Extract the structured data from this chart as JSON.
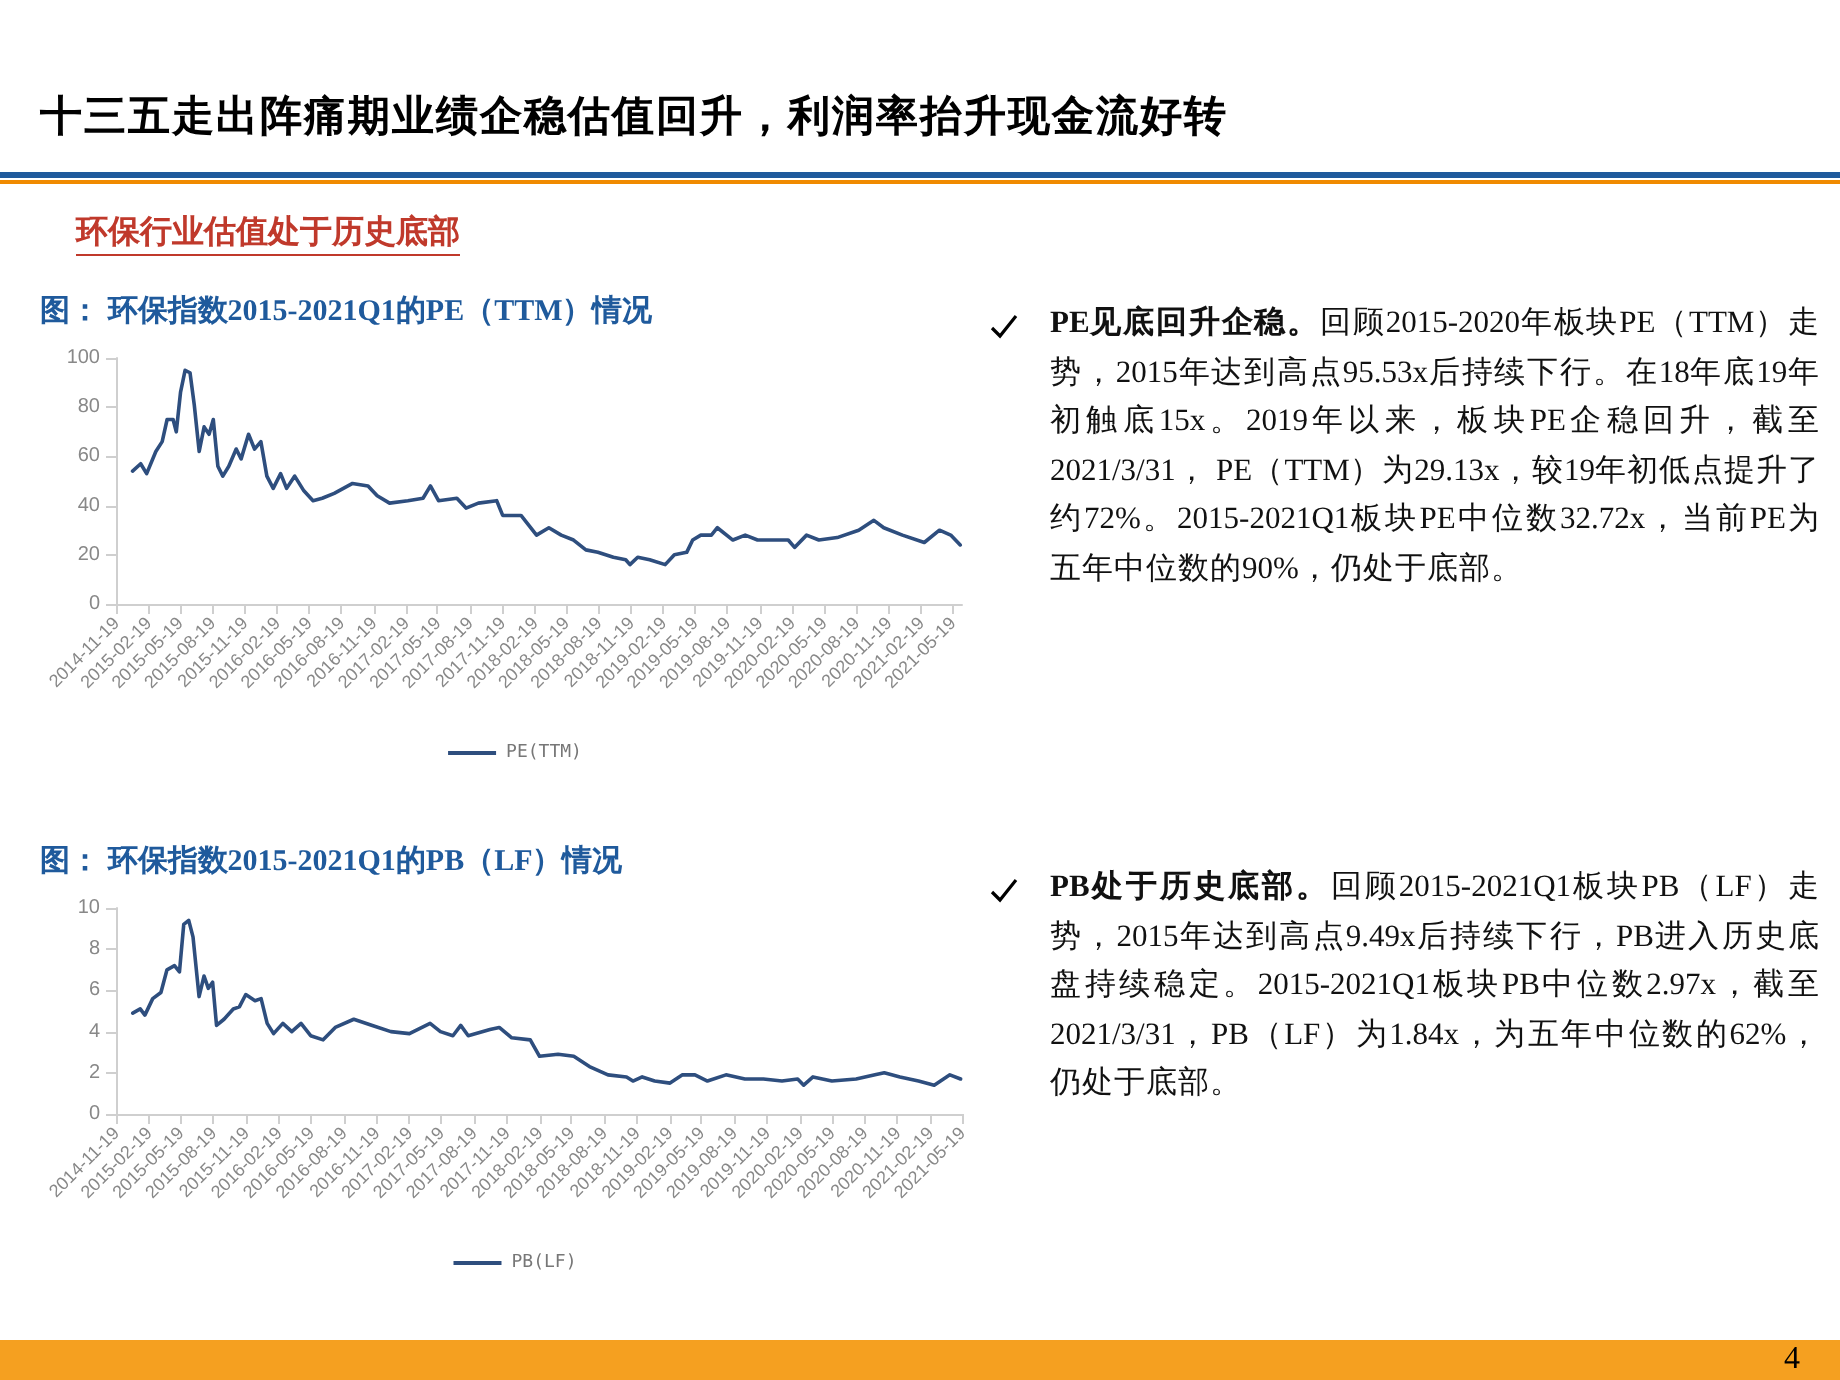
{
  "chart_data": [
    {
      "type": "other",
      "title": "十三五走出阵痛期业绩企稳估值回升，利润率抬升现金流好转",
      "subtitle": "环保行业估值处于历史底部",
      "annotations": [
        "4"
      ]
    },
    {
      "type": "line",
      "title": "图： 环保指数2015-2021Q1的PE（TTM）情况",
      "legend": "bottom",
      "grid": false,
      "marker": "none",
      "line_style": "solid",
      "xlim": [
        "2014-11-19",
        "2021-06-15"
      ],
      "xticks": [
        "2014-11-19",
        "2015-02-19",
        "2015-05-19",
        "2015-08-19",
        "2015-11-19",
        "2016-02-19",
        "2016-05-19",
        "2016-08-19",
        "2016-11-19",
        "2017-02-19",
        "2017-05-19",
        "2017-08-19",
        "2017-11-19",
        "2018-02-19",
        "2018-05-19",
        "2018-08-19",
        "2018-11-19",
        "2019-02-19",
        "2019-05-19",
        "2019-08-19",
        "2019-11-19",
        "2020-02-19",
        "2020-05-19",
        "2020-08-19",
        "2020-11-19",
        "2021-02-19",
        "2021-05-19"
      ],
      "ylim": [
        0,
        100
      ],
      "yticks": [
        0,
        20,
        40,
        60,
        80,
        100
      ],
      "x": [
        "2015-01-05",
        "2015-01-28",
        "2015-02-14",
        "2015-03-12",
        "2015-03-30",
        "2015-04-13",
        "2015-04-30",
        "2015-05-09",
        "2015-05-21",
        "2015-06-03",
        "2015-06-17",
        "2015-06-29",
        "2015-07-13",
        "2015-07-27",
        "2015-08-10",
        "2015-08-22",
        "2015-09-04",
        "2015-09-18",
        "2015-10-05",
        "2015-10-26",
        "2015-11-09",
        "2015-11-30",
        "2015-12-17",
        "2016-01-04",
        "2016-01-21",
        "2016-02-08",
        "2016-02-29",
        "2016-03-17",
        "2016-04-09",
        "2016-05-05",
        "2016-05-31",
        "2016-06-26",
        "2016-07-30",
        "2016-09-20",
        "2016-11-03",
        "2016-11-29",
        "2017-01-03",
        "2017-02-24",
        "2017-04-08",
        "2017-04-29",
        "2017-05-22",
        "2017-07-13",
        "2017-08-08",
        "2017-09-12",
        "2017-11-03",
        "2017-11-20",
        "2018-01-11",
        "2018-02-24",
        "2018-03-31",
        "2018-05-05",
        "2018-06-09",
        "2018-07-14",
        "2018-08-17",
        "2018-09-30",
        "2018-11-04",
        "2018-11-16",
        "2018-12-08",
        "2019-01-11",
        "2019-02-24",
        "2019-03-22",
        "2019-04-26",
        "2019-05-13",
        "2019-06-05",
        "2019-07-05",
        "2019-07-22",
        "2019-09-04",
        "2019-10-09",
        "2019-11-13",
        "2020-02-08",
        "2020-02-26",
        "2020-03-31",
        "2020-05-05",
        "2020-06-26",
        "2020-08-26",
        "2020-10-08",
        "2020-11-05",
        "2020-12-28",
        "2021-02-28",
        "2021-04-12",
        "2021-05-14",
        "2021-06-10"
      ],
      "series": [
        {
          "name": "PE(TTM)",
          "color": "#2e4e7e",
          "values": [
            54,
            57,
            53,
            62,
            66,
            75,
            75,
            70,
            86,
            95,
            94,
            81,
            62,
            72,
            69,
            75,
            56,
            52,
            56,
            63,
            59,
            69,
            63,
            66,
            52,
            47,
            53,
            47,
            52,
            46,
            42,
            43,
            45,
            49,
            48,
            44,
            41,
            42,
            43,
            48,
            42,
            43,
            39,
            41,
            42,
            36,
            36,
            28,
            31,
            28,
            26,
            22,
            21,
            19,
            18,
            16,
            19,
            18,
            16,
            20,
            21,
            26,
            28,
            28,
            31,
            26,
            28,
            26,
            26,
            23,
            28,
            26,
            27,
            30,
            34,
            31,
            28,
            25,
            30,
            28,
            24
          ]
        }
      ]
    },
    {
      "type": "other",
      "title": "PE见底回升企稳。",
      "annotations": [
        "回顾2015-2020年板块PE（TTM）走势，2015年达到高点95.53x后持续下行。在18年底19年初触底15x。2019年以来，板块PE企稳回升，截至2021/3/31， PE（TTM）为29.13x，较19年初低点提升了约72%。2015-2021Q1板块PE中位数32.72x，当前PE为五年中位数的90%，仍处于底部。"
      ]
    },
    {
      "type": "line",
      "title": "图： 环保指数2015-2021Q1的PB（LF）情况",
      "legend": "bottom",
      "grid": false,
      "marker": "none",
      "line_style": "solid",
      "xlim": [
        "2014-11-19",
        "2021-05-19"
      ],
      "xticks": [
        "2014-11-19",
        "2015-02-19",
        "2015-05-19",
        "2015-08-19",
        "2015-11-19",
        "2016-02-19",
        "2016-05-19",
        "2016-08-19",
        "2016-11-19",
        "2017-02-19",
        "2017-05-19",
        "2017-08-19",
        "2017-11-19",
        "2018-02-19",
        "2018-05-19",
        "2018-08-19",
        "2018-11-19",
        "2019-02-19",
        "2019-05-19",
        "2019-08-19",
        "2019-11-19",
        "2020-02-19",
        "2020-05-19",
        "2020-08-19",
        "2020-11-19",
        "2021-02-19",
        "2021-05-19"
      ],
      "ylim": [
        0,
        10
      ],
      "yticks": [
        0,
        2,
        4,
        6,
        8,
        10
      ],
      "x": [
        "2015-01-05",
        "2015-01-26",
        "2015-02-08",
        "2015-03-02",
        "2015-03-25",
        "2015-04-11",
        "2015-05-02",
        "2015-05-16",
        "2015-05-28",
        "2015-06-11",
        "2015-06-23",
        "2015-07-10",
        "2015-07-24",
        "2015-08-05",
        "2015-08-17",
        "2015-08-28",
        "2015-09-18",
        "2015-10-14",
        "2015-10-31",
        "2015-11-18",
        "2015-12-14",
        "2015-12-31",
        "2016-01-17",
        "2016-02-04",
        "2016-03-01",
        "2016-03-26",
        "2016-04-21",
        "2016-05-18",
        "2016-06-22",
        "2016-07-26",
        "2016-09-16",
        "2016-11-07",
        "2016-12-29",
        "2017-02-19",
        "2017-04-18",
        "2017-05-17",
        "2017-06-21",
        "2017-07-13",
        "2017-08-03",
        "2017-10-03",
        "2017-10-29",
        "2017-12-03",
        "2018-01-24",
        "2018-02-19",
        "2018-04-12",
        "2018-05-26",
        "2018-07-09",
        "2018-08-30",
        "2018-10-21",
        "2018-11-08",
        "2018-12-04",
        "2019-01-08",
        "2019-02-20",
        "2019-03-27",
        "2019-05-01",
        "2019-06-05",
        "2019-07-27",
        "2019-09-18",
        "2019-11-09",
        "2019-12-31",
        "2020-02-13",
        "2020-03-01",
        "2020-03-27",
        "2020-05-19",
        "2020-07-26",
        "2020-09-17",
        "2020-10-13",
        "2020-11-26",
        "2021-01-17",
        "2021-03-02",
        "2021-04-15",
        "2021-05-15"
      ],
      "series": [
        {
          "name": "PB(LF)",
          "color": "#2e4e7e",
          "values": [
            4.9,
            5.1,
            4.8,
            5.6,
            5.9,
            7.0,
            7.2,
            6.9,
            9.2,
            9.4,
            8.6,
            5.7,
            6.7,
            6.1,
            6.4,
            4.3,
            4.6,
            5.1,
            5.2,
            5.8,
            5.5,
            5.6,
            4.4,
            3.9,
            4.4,
            4.0,
            4.4,
            3.8,
            3.6,
            4.2,
            4.6,
            4.3,
            4.0,
            3.9,
            4.4,
            4.0,
            3.8,
            4.3,
            3.8,
            4.1,
            4.2,
            3.7,
            3.6,
            2.8,
            2.9,
            2.8,
            2.3,
            1.9,
            1.8,
            1.6,
            1.8,
            1.6,
            1.5,
            1.9,
            1.9,
            1.6,
            1.9,
            1.7,
            1.7,
            1.6,
            1.7,
            1.4,
            1.8,
            1.6,
            1.7,
            1.9,
            2.0,
            1.8,
            1.6,
            1.4,
            1.9,
            1.7
          ]
        }
      ]
    },
    {
      "type": "other",
      "title": "PB处于历史底部。",
      "annotations": [
        "回顾2015-2021Q1板块PB（LF）走势，2015年达到高点9.49x后持续下行，PB进入历史底盘持续稳定。2015-2021Q1板块PB中位数2.97x，截至2021/3/31，PB（LF）为1.84x，为五年中位数的62%，仍处于底部。"
      ]
    }
  ]
}
